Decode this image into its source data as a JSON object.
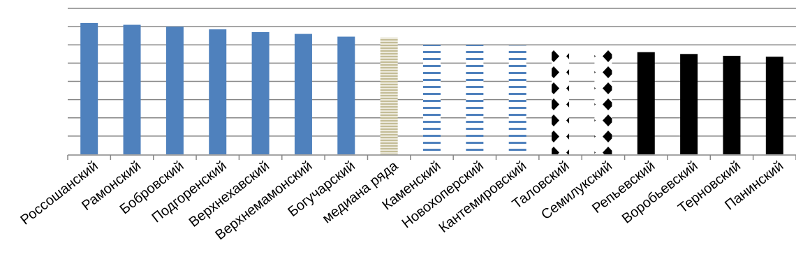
{
  "chart_data": {
    "type": "bar",
    "categories": [
      "Россошанский",
      "Рамонский",
      "Бобровский",
      "Подгоренский",
      "Верхнехавский",
      "Верхнемамонский",
      "Богучарский",
      "медиана ряда",
      "Каменский",
      "Новохоперский",
      "Кантемировский",
      "Таловский",
      "Семилукский",
      "Репьевский",
      "Воробьевский",
      "Терновский",
      "Панинский"
    ],
    "values": [
      7.2,
      7.1,
      7.0,
      6.85,
      6.7,
      6.6,
      6.45,
      6.4,
      6.0,
      6.0,
      5.95,
      5.85,
      5.85,
      5.6,
      5.5,
      5.4,
      5.35
    ],
    "styles": [
      "solid-blue",
      "solid-blue",
      "solid-blue",
      "solid-blue",
      "solid-blue",
      "solid-blue",
      "solid-blue",
      "beige-stripe",
      "blue-stripe",
      "blue-stripe",
      "blue-stripe",
      "diamond-pattern",
      "diamond-pattern",
      "solid-black",
      "solid-black",
      "solid-black",
      "solid-black"
    ],
    "colors": {
      "blue": "#4f81bd",
      "beige": "#c4bd97",
      "black": "#000000",
      "grid": "#868686"
    },
    "ylim": [
      0,
      8
    ],
    "grid": true,
    "title": "",
    "xlabel": "",
    "ylabel": ""
  }
}
